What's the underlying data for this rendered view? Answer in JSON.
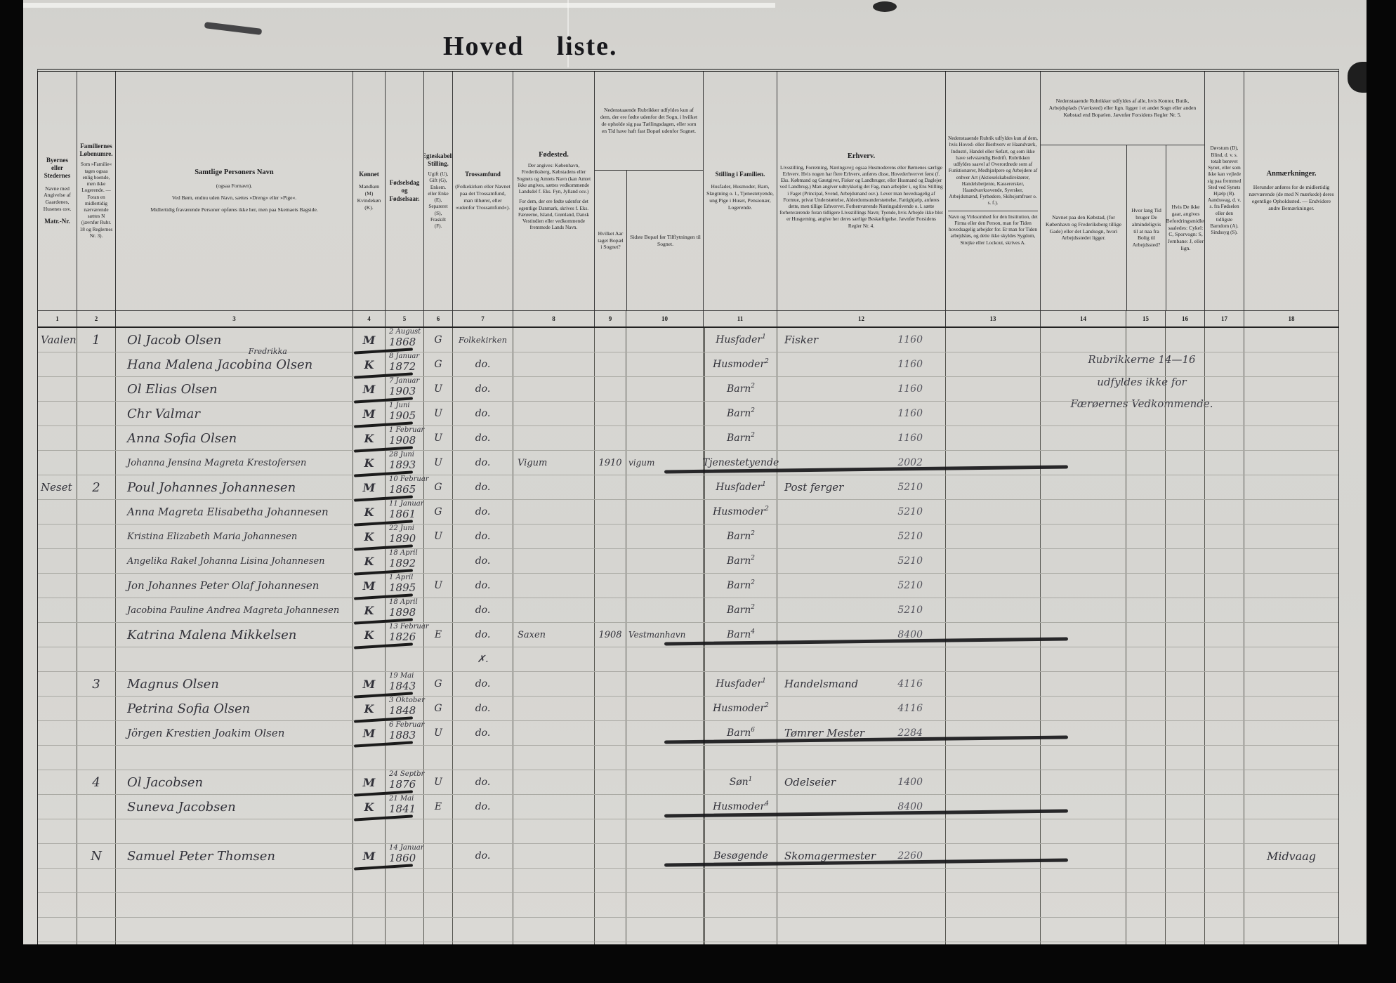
{
  "page": {
    "title_word1": "Hoved",
    "title_word2": "liste."
  },
  "colors": {
    "paper": "#d6d5d1",
    "print_ink": "#1c1c1e",
    "hand_ink": "#32323a",
    "pencil_ink": "#55555e"
  },
  "column_numbers": [
    "1",
    "2",
    "3",
    "4",
    "5",
    "6",
    "7",
    "8",
    "9",
    "10",
    "11",
    "12",
    "13",
    "14",
    "15",
    "16",
    "17",
    "18"
  ],
  "header": {
    "c1": {
      "t1": "Byernes eller Stedernes",
      "t2": "Navne med Angivelse af Gaardenes, Husenes osv.",
      "t3": "Matr.-Nr."
    },
    "c2": {
      "t1": "Familiernes Løbenumre.",
      "t2": "Som »Familie« tages ogsaa enlig boende, men ikke Logerende. — Foran en midlertidig nærværende sættes N (jævnfør Rubr. 18 og Reglernes Nr. 3)."
    },
    "c3": {
      "t1": "Samtlige Personers Navn",
      "t2": "(ogsaa Fornavn).",
      "t3": "Ved Børn, endnu uden Navn, sættes »Dreng« eller »Pige«.",
      "t4": "Midlertidig fraværende Personer opføres ikke her, men paa Skemaets Bagside."
    },
    "c4": {
      "t1": "Kønnet",
      "t2": "Mandkøn (M) Kvindekøn (K)."
    },
    "c5": {
      "t1": "Fødselsdag og Fødselsaar."
    },
    "c6": {
      "t1": "Ægteskabelig Stilling.",
      "t2": "Ugift (U), Gift (G), Enkem. eller Enke (E), Separeret (S), Fraskilt (F)."
    },
    "c7": {
      "t1": "Trossamfund",
      "t2": "(Folkekirken eller Navnet paa det Trossamfund, man tilhører, eller »udenfor Trossamfund«)."
    },
    "c8": {
      "t1": "Fødested.",
      "t2": "Der angives: København, Frederiksberg, Købstadens eller Sognets og Amtets Navn (kan Amtet ikke angives, sættes vedkommende Landsdel f. Eks. Fyn, Jylland osv.)",
      "t3": "For dem, der ere fødte udenfor det egentlige Danmark, skrives f. Eks. Færøerne, Island, Grønland, Dansk Vestindien eller vedkommende fremmede Lands Navn."
    },
    "span910": {
      "top": "Nedenstaaende Rubrikker udfyldes kun af dem, der ere fødte udenfor det Sogn, i hvilket de opholde sig paa Tællingsdagen, eller som en Tid have haft fast Bopæl udenfor Sognet.",
      "c9": "Hvilket Aar taget Bopæl i Sognet?",
      "c10": "Sidste Bopæl før Tilflytningen til Sognet."
    },
    "c11": {
      "t1": "Stilling i Familien.",
      "t2": "Husfader, Husmoder, Barn, Slægtning o. l., Tjenestetyende, ung Pige i Huset, Pensionær, Logerende."
    },
    "c12": {
      "t1": "Erhverv.",
      "t2": "Livsstilling, Forretning, Næringsvej; ogsaa Husmoderens eller Børnenes særlige Erhverv. Hvis nogen har flere Erhverv, anføres disse, Hovederhvervet først (f. Eks. Købmand og Gæstgiver, Fisker og Landbruger, eller Husmand og Daglejer ved Landbrug.) Man angiver udtrykkelig det Fag, man arbejder i, og Ens Stilling i Faget (Principal, Svend, Arbejdsmand osv.). Lever man hovedsagelig af Formue, privat Understøttelse, Alderdomsunderstøttelse, Fattighjælp, anføres dette, men tillige Erhvervet. Forhenværende Næringsdrivende o. l. sætte forhenværende foran tidligere Livsstillings Navn; Tyende, hvis Arbejde ikke blot er Husgerning, angive her deres særlige Beskæftigelse. Jævnfør Forsidens Regler Nr. 4."
    },
    "c13": {
      "t1": "Nedenstaaende Rubrik udfyldes kun af dem, hvis Hoved- eller Bierhverv er Haandværk, Industri, Handel eller Søfart, og som ikke have selvstændig Bedrift. Rubrikken udfyldes saavel af Overordnede som af Funktionærer, Medhjælpere og Arbejdere af enhver Art (Aktieselskabsdirektører, Handelsbetjente, Kasserersker, Haandværkssvende, Syersker, Arbejdsmænd, Fyrbødere, Skibsjomfruer o. s. f.).",
      "t2": "Navn og Virksomhed for den Institution, det Firma eller den Person, man for Tiden hovedsagelig arbejder for. Er man for Tiden arbejdsløs, og dette ikke skyldes Sygdom, Strejke eller Lockout, skrives A."
    },
    "span1416": {
      "top": "Nedenstaaende Rubrikker udfyldes af alle, hvis Kontor, Butik, Arbejdsplads (Værksted) eller lign. ligger i et andet Sogn eller anden Købstad end Bopælen. Jævnfør Forsidens Regler Nr. 5.",
      "c14": "Navnet paa den Købstad, (for København og Frederiksberg tillige Gade) eller det Landsogn, hvori Arbejdsstedet ligger.",
      "c15": "Hvor lang Tid bruger De almindeligvis til at naa fra Bolig til Arbejdssted?",
      "c16": "Hvis De ikke gaar, angives Befordringsmidlet saaledes: Cykel: C, Sporvogn: S, Jernbane: J, eller lign."
    },
    "c17": {
      "t1": "Døvstum (D), Blind, d. v. s. totalt berøvet Synet, eller som ikke kan vejlede sig paa fremmed Sted ved Synets Hjælp (B). Aandssvag, d. v. s. fra Fødselen eller den tidligste Barndom (A). Sindssyg (S)."
    },
    "c18": {
      "t1": "Anmærkninger.",
      "t2": "Herunder anføres for de midlertidig nærværende (de med N mærkede) deres egentlige Opholdssted. — Endvidere andre Bemærkninger."
    }
  },
  "notes": {
    "rubric_note": "Rubrikkerne 14—16\nudfyldes ikke for\nFærøernes Vedkommende."
  },
  "rows": [
    {
      "place": "Vaalen",
      "fam": "1",
      "name": "Ol Jacob Olsen",
      "sex": "M",
      "bday": "2 August",
      "byear": "1868",
      "marital": "G",
      "faith": "Folkekirken",
      "stilling": "Husfader",
      "sup": "1",
      "erhverv": "Fisker",
      "number": "1160"
    },
    {
      "name": "Hana Malena Jacobina Olsen",
      "name_above": "Fredrikka",
      "sex": "K",
      "bday": "8 Januar",
      "byear": "1872",
      "marital": "G",
      "faith": "do.",
      "stilling": "Husmoder",
      "sup": "2",
      "number": "1160"
    },
    {
      "name": "Ol Elias Olsen",
      "sex": "M",
      "bday": "7 Januar",
      "byear": "1903",
      "marital": "U",
      "faith": "do.",
      "stilling": "Barn",
      "sup": "2",
      "number": "1160"
    },
    {
      "name": "Chr Valmar",
      "sex": "M",
      "bday": "1 Juni",
      "byear": "1905",
      "marital": "U",
      "faith": "do.",
      "stilling": "Barn",
      "sup": "2",
      "number": "1160"
    },
    {
      "name": "Anna Sofia Olsen",
      "sex": "K",
      "bday": "1 Februar",
      "byear": "1908",
      "marital": "U",
      "faith": "do.",
      "stilling": "Barn",
      "sup": "2",
      "number": "1160"
    },
    {
      "name": "Johanna Jensina Magreta Krestofersen",
      "sex": "K",
      "bday": "28 Juni",
      "byear": "1893",
      "marital": "U",
      "faith": "do.",
      "birthplace": "Vigum",
      "moved_year": "1910",
      "last_res": "vigum",
      "stilling": "Tjenestetyende",
      "number": "2002",
      "strike": true
    },
    {
      "place": "Neset",
      "fam": "2",
      "name": "Poul Johannes Johannesen",
      "sex": "M",
      "bday": "10 Februar",
      "byear": "1865",
      "marital": "G",
      "faith": "do.",
      "stilling": "Husfader",
      "sup": "1",
      "erhverv": "Post ferger",
      "number": "5210"
    },
    {
      "name": "Anna Magreta Elisabetha Johannesen",
      "sex": "K",
      "bday": "11 Januar",
      "byear": "1861",
      "marital": "G",
      "faith": "do.",
      "stilling": "Husmoder",
      "sup": "2",
      "number": "5210"
    },
    {
      "name": "Kristina Elizabeth Maria Johannesen",
      "sex": "K",
      "bday": "22 Juni",
      "byear": "1890",
      "marital": "U",
      "faith": "do.",
      "stilling": "Barn",
      "sup": "2",
      "number": "5210"
    },
    {
      "name": "Angelika Rakel Johanna Lisina Johannesen",
      "sex": "K",
      "bday": "18 April",
      "byear": "1892",
      "faith": "do.",
      "stilling": "Barn",
      "sup": "2",
      "number": "5210"
    },
    {
      "name": "Jon Johannes Peter Olaf Johannesen",
      "sex": "M",
      "bday": "1 April",
      "byear": "1895",
      "marital": "U",
      "faith": "do.",
      "stilling": "Barn",
      "sup": "2",
      "number": "5210"
    },
    {
      "name": "Jacobina Pauline Andrea Magreta Johannesen",
      "sex": "K",
      "bday": "18 April",
      "byear": "1898",
      "faith": "do.",
      "stilling": "Barn",
      "sup": "2",
      "number": "5210"
    },
    {
      "name": "Katrina Malena Mikkelsen",
      "sex": "K",
      "bday": "13 Februar",
      "byear": "1826",
      "marital": "E",
      "faith": "do.",
      "birthplace": "Saxen",
      "moved_year": "1908",
      "last_res": "Vestmanhavn",
      "stilling": "Barn",
      "sup": "4",
      "number": "8400",
      "strike": true
    },
    {
      "faith": "✗."
    },
    {
      "fam": "3",
      "name": "Magnus Olsen",
      "sex": "M",
      "bday": "19 Mai",
      "byear": "1843",
      "marital": "G",
      "faith": "do.",
      "stilling": "Husfader",
      "sup": "1",
      "erhverv": "Handelsmand",
      "number": "4116"
    },
    {
      "name": "Petrina Sofia Olsen",
      "sex": "K",
      "bday": "3 Oktober",
      "byear": "1848",
      "marital": "G",
      "faith": "do.",
      "stilling": "Husmoder",
      "sup": "2",
      "number": "4116"
    },
    {
      "name": "Jörgen Krestien Joakim Olsen",
      "sex": "M",
      "bday": "6 Februar",
      "byear": "1883",
      "marital": "U",
      "faith": "do.",
      "stilling": "Barn",
      "sup": "6",
      "erhverv": "Tømrer Mester",
      "number": "2284",
      "strike": true
    },
    {},
    {
      "fam": "4",
      "name": "Ol Jacobsen",
      "sex": "M",
      "bday": "24 Septbr",
      "byear": "1876",
      "marital": "U",
      "faith": "do.",
      "stilling": "Søn",
      "sup": "1",
      "erhverv": "Odelseier",
      "number": "1400"
    },
    {
      "name": "Suneva Jacobsen",
      "sex": "K",
      "bday": "21 Mai",
      "byear": "1841",
      "marital": "E",
      "faith": "do.",
      "stilling": "Husmoder",
      "sup": "4",
      "number": "8400",
      "strike": true
    },
    {},
    {
      "fam": "N",
      "name": "Samuel Peter Thomsen",
      "sex": "M",
      "bday": "14 Januar",
      "byear": "1860",
      "faith": "do.",
      "stilling": "Besøgende",
      "erhverv": "Skomagermester",
      "number": "2260",
      "remark": "Midvaag",
      "strike": true
    },
    {},
    {},
    {},
    {}
  ]
}
